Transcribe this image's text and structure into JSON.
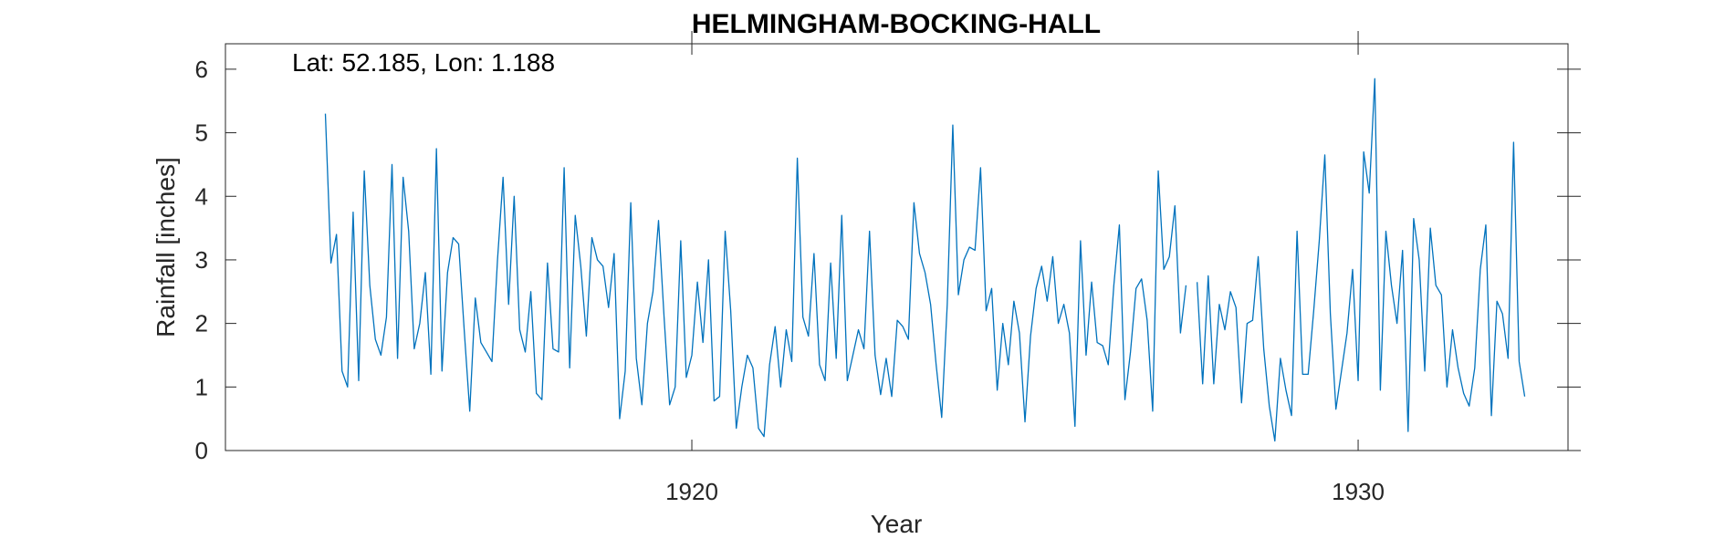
{
  "chart_data": {
    "type": "line",
    "title": "HELMINGHAM-BOCKING-HALL",
    "annotation": "Lat: 52.185, Lon: 1.188",
    "xlabel": "Year",
    "ylabel": "Rainfall [inches]",
    "xlim": [
      1913.0,
      1933.15
    ],
    "ylim": [
      0,
      6.4
    ],
    "xticks": [
      1920,
      1930
    ],
    "xtick_labels": [
      "1920",
      "1930"
    ],
    "yticks": [
      0,
      1,
      2,
      3,
      4,
      5,
      6
    ],
    "ytick_labels": [
      "0",
      "1",
      "2",
      "3",
      "4",
      "5",
      "6"
    ],
    "grid": false,
    "line_color": "#0072BD",
    "series": [
      {
        "x_start": 1914.5,
        "x_step": 0.0833333,
        "values": [
          5.3,
          2.95,
          3.4,
          1.25,
          1.0,
          3.75,
          1.1,
          4.4,
          2.6,
          1.75,
          1.5,
          2.1,
          4.5,
          1.45,
          4.3,
          3.45,
          1.6,
          2.0,
          2.8,
          1.2,
          4.75,
          1.25,
          2.8,
          3.35,
          3.25,
          1.9,
          0.62,
          2.4,
          1.7,
          1.55,
          1.4,
          3.0,
          4.3,
          2.3,
          4.0,
          1.9,
          1.55,
          2.5,
          0.9,
          0.8,
          2.95,
          1.6,
          1.55,
          4.45,
          1.3,
          3.7,
          2.9,
          1.8,
          3.35,
          3.0,
          2.9,
          2.25,
          3.1,
          0.5,
          1.25,
          3.9,
          1.45,
          0.72,
          2.0,
          2.5,
          3.62,
          2.1,
          0.72,
          1.0,
          3.3,
          1.15,
          1.5,
          2.65,
          1.7,
          3.0,
          0.78,
          0.85,
          3.45,
          2.2,
          0.35,
          1.0,
          1.5,
          1.3,
          0.35,
          0.22,
          1.35,
          1.95,
          1.0,
          1.9,
          1.4,
          4.6,
          2.1,
          1.8,
          3.1,
          1.35,
          1.1,
          2.95,
          1.45,
          3.7,
          1.1,
          1.5,
          1.9,
          1.6,
          3.45,
          1.5,
          0.88,
          1.45,
          0.85,
          2.05,
          1.95,
          1.75,
          3.9,
          3.1,
          2.8,
          2.3,
          1.35,
          0.52,
          2.3,
          5.12,
          2.45,
          3.0,
          3.2,
          3.15,
          4.45,
          2.2,
          2.55,
          0.95,
          2.0,
          1.35,
          2.35,
          1.85,
          0.45,
          1.8,
          2.55,
          2.9,
          2.35,
          3.05,
          2.0,
          2.3,
          1.85,
          0.38,
          3.3,
          1.5,
          2.65,
          1.7,
          1.65,
          1.35,
          2.6,
          3.55,
          0.8,
          1.55,
          2.55,
          2.7,
          2.05,
          0.62,
          4.4,
          2.85,
          3.05,
          3.85,
          1.85,
          2.6,
          null,
          2.65,
          1.05,
          2.75,
          1.05,
          2.3,
          1.9,
          2.5,
          2.25,
          0.75,
          2.0,
          2.05,
          3.05,
          1.6,
          0.7,
          0.15,
          1.45,
          0.95,
          0.55,
          3.45,
          1.2,
          1.2,
          2.2,
          3.3,
          4.65,
          2.15,
          0.65,
          1.25,
          1.85,
          2.85,
          1.1,
          4.7,
          4.05,
          5.85,
          0.95,
          3.45,
          2.6,
          2.0,
          3.15,
          0.3,
          3.65,
          3.0,
          1.25,
          3.5,
          2.6,
          2.45,
          1.0,
          1.9,
          1.3,
          0.9,
          0.7,
          1.3,
          2.85,
          3.55,
          0.55,
          2.35,
          2.15,
          1.45,
          4.85,
          1.4,
          0.85
        ]
      }
    ]
  }
}
